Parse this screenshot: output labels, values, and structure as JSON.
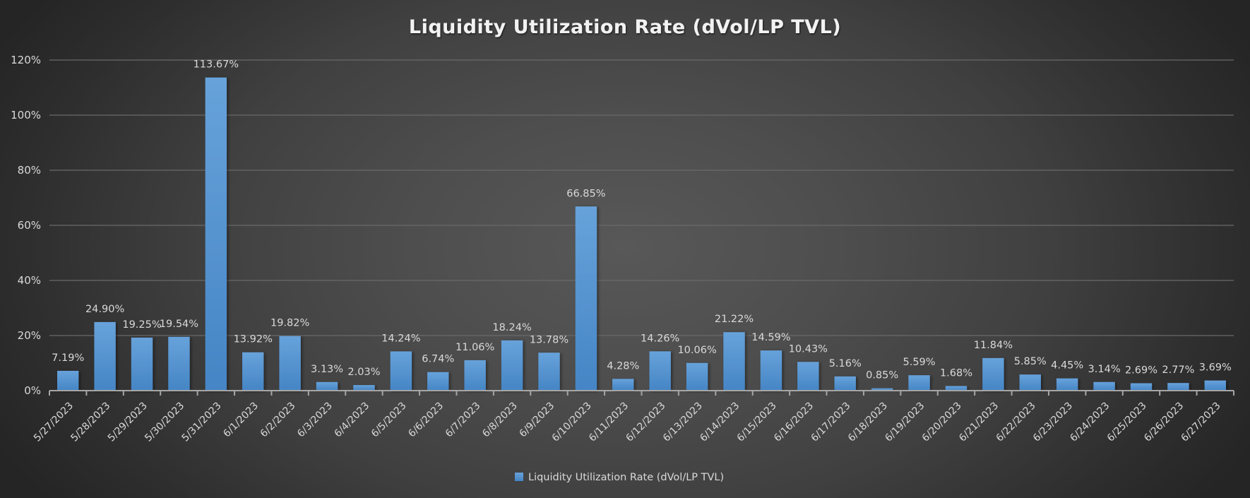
{
  "chart_data": {
    "type": "bar",
    "title": "Liquidity Utilization Rate (dVol/LP TVL)",
    "xlabel": "",
    "ylabel": "",
    "ylim": [
      0,
      120
    ],
    "yticks": [
      0,
      20,
      40,
      60,
      80,
      100,
      120
    ],
    "ytick_labels": [
      "0%",
      "20%",
      "40%",
      "60%",
      "80%",
      "100%",
      "120%"
    ],
    "grid": true,
    "legend_position": "bottom",
    "colors": {
      "bar": "#5b9bd5",
      "bar_dark": "#4585c5",
      "text": "#d9d9d9",
      "title": "#f2f2f2"
    },
    "categories": [
      "5/27/2023",
      "5/28/2023",
      "5/29/2023",
      "5/30/2023",
      "5/31/2023",
      "6/1/2023",
      "6/2/2023",
      "6/3/2023",
      "6/4/2023",
      "6/5/2023",
      "6/6/2023",
      "6/7/2023",
      "6/8/2023",
      "6/9/2023",
      "6/10/2023",
      "6/11/2023",
      "6/12/2023",
      "6/13/2023",
      "6/14/2023",
      "6/15/2023",
      "6/16/2023",
      "6/17/2023",
      "6/18/2023",
      "6/19/2023",
      "6/20/2023",
      "6/21/2023",
      "6/22/2023",
      "6/23/2023",
      "6/24/2023",
      "6/25/2023",
      "6/26/2023",
      "6/27/2023"
    ],
    "series": [
      {
        "name": "Liquidity Utilization Rate (dVol/LP TVL)",
        "values": [
          7.19,
          24.9,
          19.25,
          19.54,
          113.67,
          13.92,
          19.82,
          3.13,
          2.03,
          14.24,
          6.74,
          11.06,
          18.24,
          13.78,
          66.85,
          4.28,
          14.26,
          10.06,
          21.22,
          14.59,
          10.43,
          5.16,
          0.85,
          5.59,
          1.68,
          11.84,
          5.85,
          4.45,
          3.14,
          2.69,
          2.77,
          3.69
        ],
        "data_labels": [
          "7.19%",
          "24.90%",
          "19.25%",
          "19.54%",
          "113.67%",
          "13.92%",
          "19.82%",
          "3.13%",
          "2.03%",
          "14.24%",
          "6.74%",
          "11.06%",
          "18.24%",
          "13.78%",
          "66.85%",
          "4.28%",
          "14.26%",
          "10.06%",
          "21.22%",
          "14.59%",
          "10.43%",
          "5.16%",
          "0.85%",
          "5.59%",
          "1.68%",
          "11.84%",
          "5.85%",
          "4.45%",
          "3.14%",
          "2.69%",
          "2.77%",
          "3.69%"
        ]
      }
    ]
  }
}
